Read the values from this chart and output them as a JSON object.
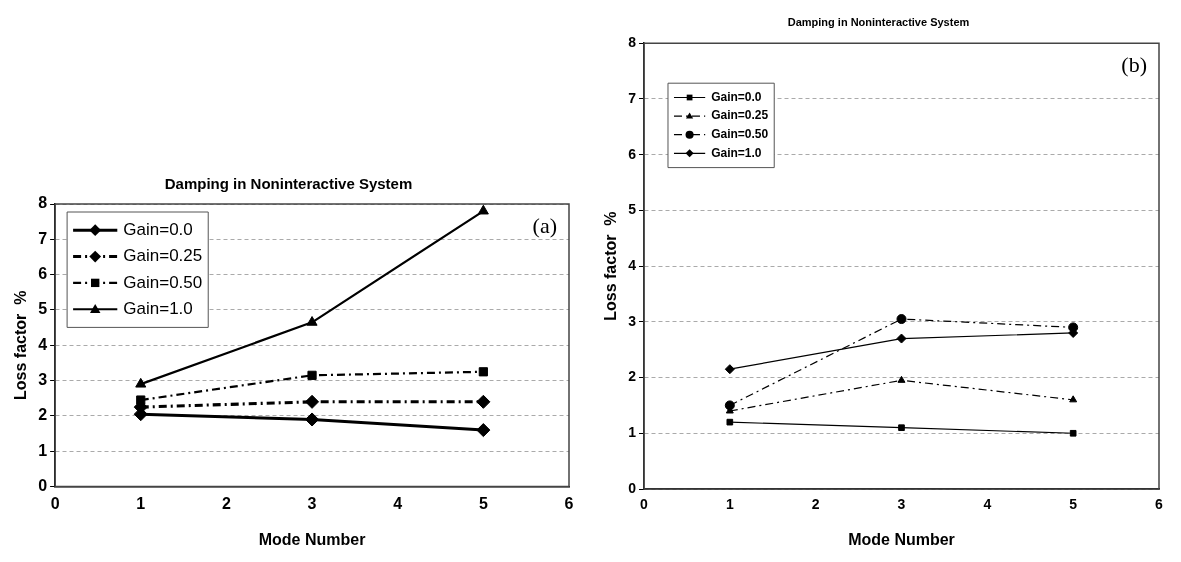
{
  "chart_data": [
    {
      "type": "line",
      "title": "Damping in Noninteractive System",
      "xlabel": "Mode Number",
      "ylabel": "Loss factor  %",
      "annotations": [
        "(a)"
      ],
      "xlim": [
        0,
        6
      ],
      "xticks": [
        0,
        1,
        2,
        3,
        4,
        5,
        6
      ],
      "ylim": [
        0,
        8
      ],
      "yticks": [
        0,
        1,
        2,
        3,
        4,
        5,
        6,
        7,
        8
      ],
      "grid": "y",
      "legend": "top left",
      "x": [
        1,
        3,
        5
      ],
      "series": [
        {
          "name": "Gain=0.0",
          "color": "#000000",
          "values": [
            2.05,
            1.9,
            1.6
          ],
          "marker": "diamond",
          "line_style": "solid"
        },
        {
          "name": "Gain=0.25",
          "color": "#000000",
          "values": [
            2.25,
            2.4,
            2.4
          ],
          "marker": "diamond",
          "line_style": "dashed"
        },
        {
          "name": "Gain=0.50",
          "color": "#000000",
          "values": [
            2.45,
            3.15,
            3.25
          ],
          "marker": "square",
          "line_style": "dashed"
        },
        {
          "name": "Gain=1.0",
          "color": "#000000",
          "values": [
            2.9,
            4.65,
            7.8
          ],
          "marker": "triangle",
          "line_style": "solid"
        }
      ]
    },
    {
      "type": "line",
      "title": "Damping in Noninteractive System",
      "xlabel": "Mode Number",
      "ylabel": "Loss factor  %",
      "annotations": [
        "(b)"
      ],
      "xlim": [
        0,
        6
      ],
      "xticks": [
        0,
        1,
        2,
        3,
        4,
        5,
        6
      ],
      "ylim": [
        0,
        8
      ],
      "yticks": [
        0,
        1,
        2,
        3,
        4,
        5,
        6,
        7,
        8
      ],
      "grid": "y",
      "legend": "top left",
      "x": [
        1,
        3,
        5
      ],
      "series": [
        {
          "name": "Gain=0.0",
          "color": "#000000",
          "values": [
            1.2,
            1.1,
            1.0
          ],
          "marker": "square",
          "line_style": "solid"
        },
        {
          "name": "Gain=0.25",
          "color": "#000000",
          "values": [
            1.4,
            1.95,
            1.6
          ],
          "marker": "triangle",
          "line_style": "dashed"
        },
        {
          "name": "Gain=0.50",
          "color": "#000000",
          "values": [
            1.5,
            3.05,
            2.9
          ],
          "marker": "circle",
          "line_style": "dashed"
        },
        {
          "name": "Gain=1.0",
          "color": "#000000",
          "values": [
            2.15,
            2.7,
            2.8
          ],
          "marker": "diamond",
          "line_style": "solid"
        }
      ]
    }
  ]
}
